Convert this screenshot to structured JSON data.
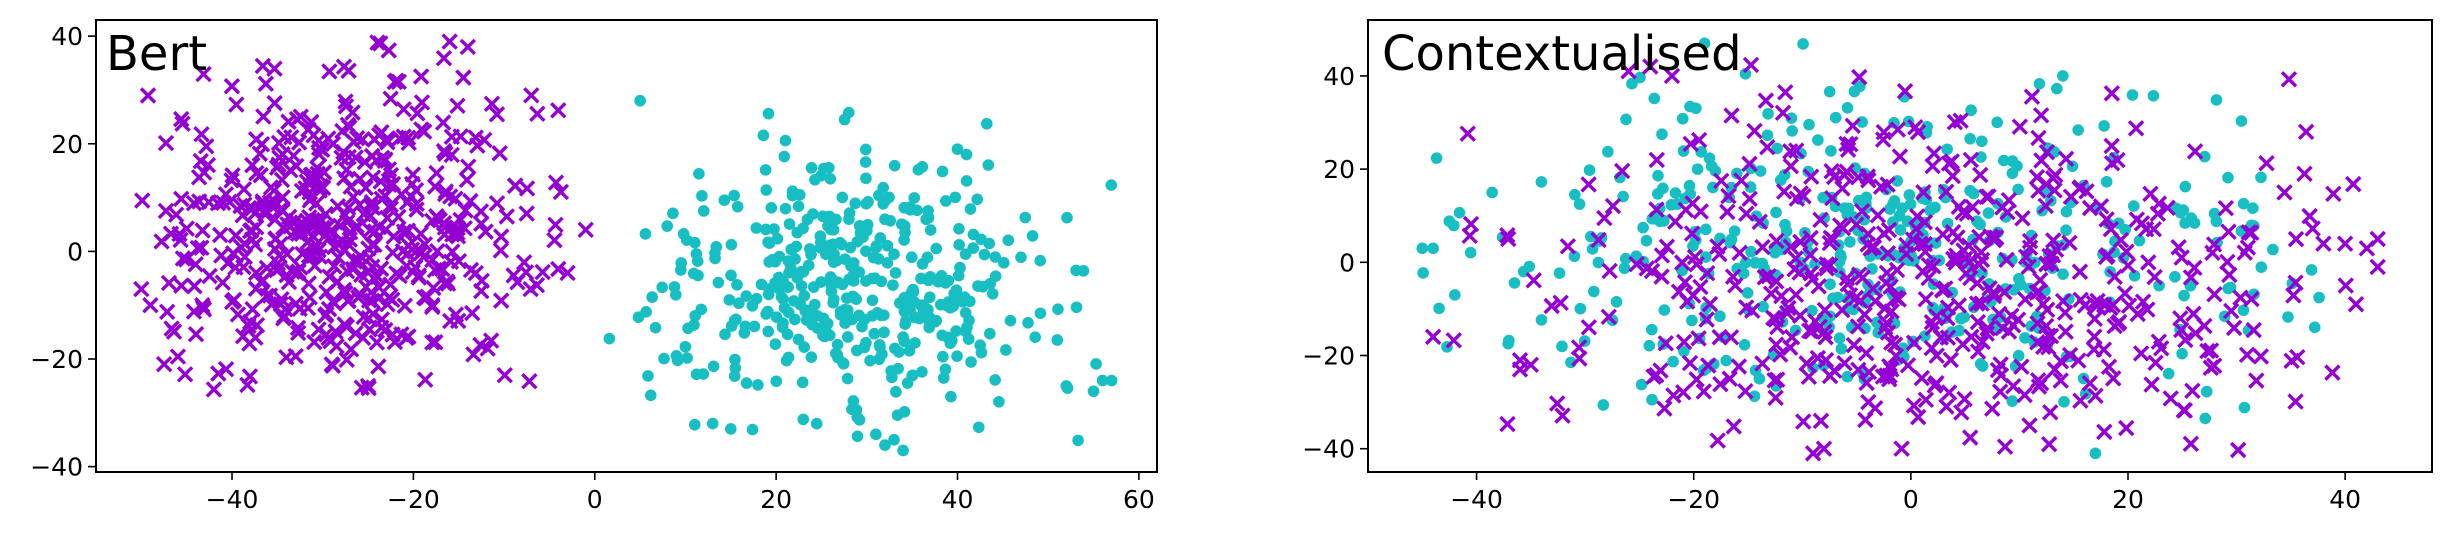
{
  "colors": {
    "dot": "#17bfc3",
    "cross": "#9400d3"
  },
  "chart_data": [
    {
      "type": "scatter",
      "title": "Bert",
      "xlim": [
        -55,
        62
      ],
      "ylim": [
        -41,
        43
      ],
      "xticks": [
        -40,
        -20,
        0,
        20,
        40,
        60
      ],
      "yticks": [
        -40,
        -20,
        0,
        20,
        40
      ],
      "xtick_labels": [
        "−40",
        "−20",
        "0",
        "20",
        "40",
        "60"
      ],
      "ytick_labels": [
        "−40",
        "−20",
        "0",
        "20",
        "40"
      ],
      "grid": false,
      "series": [
        {
          "marker": "x",
          "color": "#9400d3",
          "cluster": {
            "cx": -28,
            "cy": 3,
            "sx": 11,
            "sy": 14,
            "count": 520,
            "xmin": -50,
            "xmax": -3,
            "ymin": -26,
            "ymax": 39
          },
          "extra_points": [
            [
              -14,
              38
            ],
            [
              -16,
              39
            ],
            [
              -50,
              -7
            ],
            [
              -49,
              -10
            ],
            [
              -25,
              -25
            ],
            [
              -29,
              -21
            ],
            [
              -1,
              4
            ],
            [
              -7,
              29
            ],
            [
              -3,
              -4
            ]
          ]
        },
        {
          "marker": "o",
          "color": "#17bfc3",
          "cluster": {
            "cx": 28,
            "cy": -8,
            "sx": 12,
            "sy": 12,
            "count": 430,
            "xmin": 1,
            "xmax": 58,
            "ymin": -37,
            "ymax": 29
          },
          "extra_points": [
            [
              5,
              28
            ],
            [
              31,
              -34
            ],
            [
              32,
              -36
            ],
            [
              34,
              -37
            ],
            [
              33,
              -35
            ],
            [
              56,
              -24
            ],
            [
              57,
              -24
            ],
            [
              55,
              -26
            ],
            [
              52,
              -25
            ],
            [
              40,
              19
            ],
            [
              41,
              18
            ],
            [
              13,
              -32
            ],
            [
              15,
              -33
            ]
          ]
        }
      ]
    },
    {
      "type": "scatter",
      "title": "Contextualised",
      "xlim": [
        -50,
        48
      ],
      "ylim": [
        -45,
        52
      ],
      "xticks": [
        -40,
        -20,
        0,
        20,
        40
      ],
      "yticks": [
        -40,
        -20,
        0,
        20,
        40
      ],
      "xtick_labels": [
        "−40",
        "−20",
        "0",
        "20",
        "40"
      ],
      "ytick_labels": [
        "−40",
        "−20",
        "0",
        "20",
        "40"
      ],
      "grid": false,
      "series": [
        {
          "marker": "o",
          "color": "#17bfc3",
          "cluster": {
            "cx": -2,
            "cy": 2,
            "sx": 18,
            "sy": 17,
            "count": 430,
            "xmin": -46,
            "xmax": 38,
            "ymin": -41,
            "ymax": 47
          },
          "extra_points": [
            [
              -45,
              3
            ],
            [
              -44,
              3
            ],
            [
              -42,
              -7
            ],
            [
              17,
              -41
            ],
            [
              14,
              40
            ],
            [
              -19,
              47
            ]
          ]
        },
        {
          "marker": "x",
          "color": "#9400d3",
          "cluster": {
            "cx": 2,
            "cy": -5,
            "sx": 18,
            "sy": 18,
            "count": 520,
            "xmin": -44,
            "xmax": 43,
            "ymin": -41,
            "ymax": 43
          },
          "extra_points": [
            [
              -44,
              -16
            ],
            [
              -36,
              -21
            ],
            [
              -35,
              -22
            ],
            [
              -36,
              -23
            ],
            [
              -26,
              41
            ],
            [
              -24,
              42
            ],
            [
              -22,
              40
            ],
            [
              38,
              4
            ],
            [
              40,
              4
            ],
            [
              42,
              3
            ],
            [
              43,
              5
            ],
            [
              41,
              -9
            ],
            [
              43,
              -1
            ],
            [
              -8,
              -40
            ],
            [
              -9,
              -41
            ]
          ]
        }
      ]
    }
  ]
}
